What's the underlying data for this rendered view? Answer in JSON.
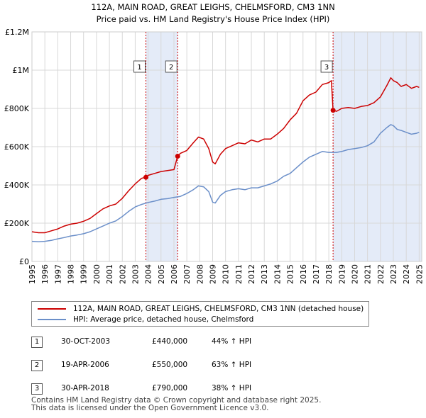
{
  "chart_data": {
    "type": "line",
    "title": "112A, MAIN ROAD, GREAT LEIGHS, CHELMSFORD, CM3 1NN",
    "subtitle": "Price paid vs. HM Land Registry's House Price Index (HPI)",
    "xlim": [
      1995,
      2025.2
    ],
    "ylim": [
      0,
      1200000
    ],
    "x_ticks": [
      "1995",
      "1996",
      "1997",
      "1998",
      "1999",
      "2000",
      "2001",
      "2002",
      "2003",
      "2004",
      "2005",
      "2006",
      "2007",
      "2008",
      "2009",
      "2010",
      "2011",
      "2012",
      "2013",
      "2014",
      "2015",
      "2016",
      "2017",
      "2018",
      "2019",
      "2020",
      "2021",
      "2022",
      "2023",
      "2024",
      "2025"
    ],
    "y_ticks": [
      {
        "value": 0,
        "label": "£0"
      },
      {
        "value": 200000,
        "label": "£200K"
      },
      {
        "value": 400000,
        "label": "£400K"
      },
      {
        "value": 600000,
        "label": "£600K"
      },
      {
        "value": 800000,
        "label": "£800K"
      },
      {
        "value": 1000000,
        "label": "£1M"
      },
      {
        "value": 1200000,
        "label": "£1.2M"
      }
    ],
    "series": [
      {
        "name": "112A, MAIN ROAD, GREAT LEIGHS, CHELMSFORD, CM3 1NN (detached house)",
        "color": "#cc0000",
        "x": [
          1995.0,
          1995.5,
          1996.0,
          1996.5,
          1997.0,
          1997.5,
          1998.0,
          1998.5,
          1999.0,
          1999.5,
          2000.0,
          2000.5,
          2001.0,
          2001.5,
          2002.0,
          2002.5,
          2003.0,
          2003.5,
          2003.83,
          2004.0,
          2004.5,
          2005.0,
          2005.5,
          2006.0,
          2006.29,
          2006.5,
          2007.0,
          2007.5,
          2007.9,
          2008.3,
          2008.7,
          2009.0,
          2009.2,
          2009.6,
          2010.0,
          2010.5,
          2011.0,
          2011.5,
          2012.0,
          2012.5,
          2013.0,
          2013.5,
          2014.0,
          2014.5,
          2015.0,
          2015.5,
          2016.0,
          2016.5,
          2017.0,
          2017.5,
          2018.0,
          2018.2,
          2018.33,
          2018.6,
          2019.0,
          2019.5,
          2020.0,
          2020.5,
          2021.0,
          2021.5,
          2022.0,
          2022.5,
          2022.8,
          2023.0,
          2023.3,
          2023.6,
          2024.0,
          2024.4,
          2024.8,
          2025.0
        ],
        "y": [
          155000,
          150000,
          150000,
          160000,
          170000,
          185000,
          195000,
          200000,
          210000,
          225000,
          250000,
          275000,
          290000,
          300000,
          330000,
          370000,
          405000,
          435000,
          440000,
          450000,
          460000,
          470000,
          475000,
          480000,
          550000,
          565000,
          580000,
          620000,
          650000,
          640000,
          590000,
          520000,
          510000,
          560000,
          590000,
          605000,
          620000,
          615000,
          635000,
          625000,
          640000,
          640000,
          665000,
          695000,
          740000,
          775000,
          840000,
          870000,
          885000,
          925000,
          935000,
          945000,
          790000,
          785000,
          800000,
          805000,
          800000,
          810000,
          815000,
          830000,
          860000,
          920000,
          960000,
          945000,
          935000,
          915000,
          925000,
          905000,
          915000,
          910000
        ]
      },
      {
        "name": "HPI: Average price, detached house, Chelmsford",
        "color": "#6b8fc9",
        "x": [
          1995.0,
          1995.5,
          1996.0,
          1996.5,
          1997.0,
          1997.5,
          1998.0,
          1998.5,
          1999.0,
          1999.5,
          2000.0,
          2000.5,
          2001.0,
          2001.5,
          2002.0,
          2002.5,
          2003.0,
          2003.5,
          2004.0,
          2004.5,
          2005.0,
          2005.5,
          2006.0,
          2006.5,
          2007.0,
          2007.5,
          2007.9,
          2008.3,
          2008.7,
          2009.0,
          2009.2,
          2009.6,
          2010.0,
          2010.5,
          2011.0,
          2011.5,
          2012.0,
          2012.5,
          2013.0,
          2013.5,
          2014.0,
          2014.5,
          2015.0,
          2015.5,
          2016.0,
          2016.5,
          2017.0,
          2017.5,
          2018.0,
          2018.3,
          2018.6,
          2019.0,
          2019.5,
          2020.0,
          2020.5,
          2021.0,
          2021.5,
          2022.0,
          2022.5,
          2022.8,
          2023.0,
          2023.3,
          2023.6,
          2024.0,
          2024.4,
          2024.8,
          2025.0
        ],
        "y": [
          105000,
          103000,
          105000,
          110000,
          118000,
          125000,
          133000,
          138000,
          145000,
          155000,
          170000,
          185000,
          200000,
          212000,
          235000,
          262000,
          285000,
          298000,
          308000,
          315000,
          325000,
          328000,
          335000,
          340000,
          355000,
          375000,
          395000,
          390000,
          365000,
          310000,
          305000,
          345000,
          365000,
          375000,
          380000,
          375000,
          385000,
          385000,
          395000,
          405000,
          420000,
          445000,
          460000,
          490000,
          520000,
          545000,
          560000,
          575000,
          570000,
          570000,
          570000,
          575000,
          585000,
          590000,
          595000,
          605000,
          625000,
          670000,
          700000,
          715000,
          710000,
          690000,
          685000,
          675000,
          665000,
          670000,
          675000
        ]
      }
    ],
    "sales": [
      {
        "label": "1",
        "x": 2003.83,
        "y": 440000,
        "date": "30-OCT-2003",
        "price": "£440,000",
        "hpi": "44% ↑ HPI"
      },
      {
        "label": "2",
        "x": 2006.29,
        "y": 550000,
        "date": "19-APR-2006",
        "price": "£550,000",
        "hpi": "63% ↑ HPI"
      },
      {
        "label": "3",
        "x": 2018.33,
        "y": 790000,
        "date": "30-APR-2018",
        "price": "£790,000",
        "hpi": "38% ↑ HPI"
      }
    ],
    "shaded_ranges": [
      [
        2003.83,
        2006.29
      ],
      [
        2018.33,
        2025.2
      ]
    ],
    "grid": true
  },
  "legend": {
    "property_label": "112A, MAIN ROAD, GREAT LEIGHS, CHELMSFORD, CM3 1NN (detached house)",
    "hpi_label": "HPI: Average price, detached house, Chelmsford",
    "property_color": "#cc0000",
    "hpi_color": "#6b8fc9"
  },
  "footer": {
    "line1": "Contains HM Land Registry data © Crown copyright and database right 2025.",
    "line2": "This data is licensed under the Open Government Licence v3.0."
  }
}
